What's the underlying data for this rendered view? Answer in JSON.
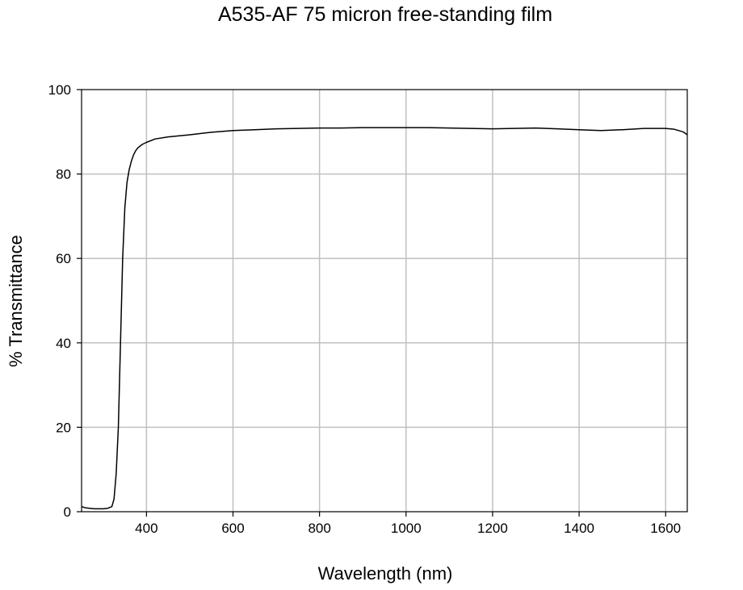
{
  "chart_data": {
    "type": "line",
    "title": "A535-AF 75 micron free-standing film",
    "xlabel": "Wavelength (nm)",
    "ylabel": "% Transmittance",
    "xlim": [
      250,
      1650
    ],
    "ylim": [
      0,
      100
    ],
    "x_ticks": [
      400,
      600,
      800,
      1000,
      1200,
      1400,
      1600
    ],
    "y_ticks": [
      0,
      20,
      40,
      60,
      80,
      100
    ],
    "grid": true,
    "colors": {
      "line": "#000000",
      "grid": "#c0c0c0",
      "axes": "#000000",
      "background": "#ffffff"
    },
    "series": [
      {
        "x": [
          250,
          260,
          270,
          280,
          290,
          300,
          310,
          320,
          325,
          330,
          335,
          340,
          345,
          350,
          355,
          360,
          365,
          370,
          375,
          380,
          390,
          400,
          420,
          450,
          500,
          550,
          600,
          650,
          700,
          750,
          800,
          850,
          900,
          950,
          1000,
          1050,
          1100,
          1150,
          1200,
          1250,
          1300,
          1350,
          1400,
          1450,
          1500,
          1550,
          1600,
          1620,
          1640,
          1650
        ],
        "y": [
          1.2,
          0.9,
          0.8,
          0.7,
          0.7,
          0.7,
          0.8,
          1.2,
          3.0,
          9.0,
          20.0,
          40.0,
          60.0,
          72.0,
          78.0,
          81.0,
          83.0,
          84.5,
          85.5,
          86.2,
          87.0,
          87.5,
          88.3,
          88.8,
          89.3,
          89.9,
          90.3,
          90.5,
          90.7,
          90.8,
          90.9,
          90.9,
          91.0,
          91.0,
          91.0,
          91.0,
          90.9,
          90.8,
          90.7,
          90.8,
          90.9,
          90.7,
          90.5,
          90.3,
          90.5,
          90.8,
          90.8,
          90.6,
          90.0,
          89.3
        ]
      }
    ]
  }
}
